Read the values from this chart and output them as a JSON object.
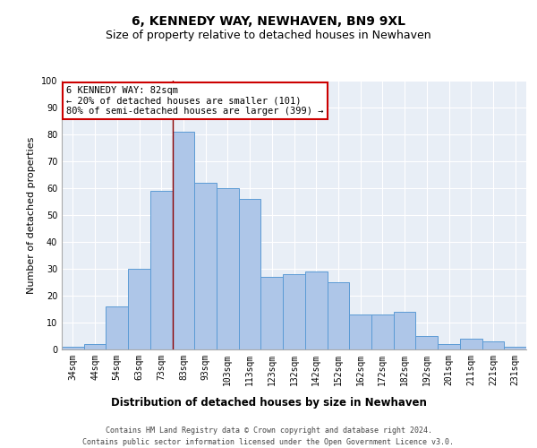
{
  "title": "6, KENNEDY WAY, NEWHAVEN, BN9 9XL",
  "subtitle": "Size of property relative to detached houses in Newhaven",
  "xlabel": "Distribution of detached houses by size in Newhaven",
  "ylabel": "Number of detached properties",
  "categories": [
    "34sqm",
    "44sqm",
    "54sqm",
    "63sqm",
    "73sqm",
    "83sqm",
    "93sqm",
    "103sqm",
    "113sqm",
    "123sqm",
    "132sqm",
    "142sqm",
    "152sqm",
    "162sqm",
    "172sqm",
    "182sqm",
    "192sqm",
    "201sqm",
    "211sqm",
    "221sqm",
    "231sqm"
  ],
  "values": [
    1,
    2,
    16,
    30,
    59,
    81,
    62,
    60,
    56,
    27,
    28,
    29,
    25,
    13,
    13,
    14,
    5,
    2,
    4,
    3,
    1
  ],
  "bar_color": "#aec6e8",
  "bar_edge_color": "#5b9bd5",
  "background_color": "#e8eef6",
  "vline_x": 4.5,
  "vline_color": "#8b0000",
  "annotation_text": "6 KENNEDY WAY: 82sqm\n← 20% of detached houses are smaller (101)\n80% of semi-detached houses are larger (399) →",
  "annotation_box_color": "white",
  "annotation_box_edge": "#cc0000",
  "ylim": [
    0,
    100
  ],
  "yticks": [
    0,
    10,
    20,
    30,
    40,
    50,
    60,
    70,
    80,
    90,
    100
  ],
  "footer1": "Contains HM Land Registry data © Crown copyright and database right 2024.",
  "footer2": "Contains public sector information licensed under the Open Government Licence v3.0.",
  "title_fontsize": 10,
  "subtitle_fontsize": 9,
  "tick_fontsize": 7,
  "ylabel_fontsize": 8,
  "xlabel_fontsize": 8.5,
  "footer_fontsize": 6,
  "annot_fontsize": 7.5
}
